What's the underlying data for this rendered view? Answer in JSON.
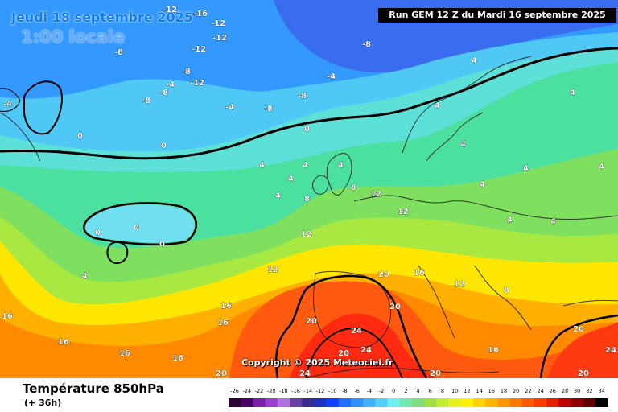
{
  "header": {
    "date": "Jeudi 18 septembre 2025",
    "time": "1:00 locale",
    "run": "Run GEM 12 Z du Mardi 16 septembre 2025"
  },
  "copyright": "Copyright © 2025 Meteociel.fr",
  "footer": {
    "variable": "Température 850hPa",
    "lead": "(+ 36h)"
  },
  "legend": {
    "ticks": [
      "-26",
      "-24",
      "-22",
      "-20",
      "-18",
      "-16",
      "-14",
      "-12",
      "-10",
      "-8",
      "-6",
      "-4",
      "-2",
      "0",
      "2",
      "4",
      "6",
      "8",
      "10",
      "12",
      "14",
      "16",
      "18",
      "20",
      "22",
      "24",
      "26",
      "28",
      "30",
      "32",
      "34"
    ],
    "colors": [
      "#2a0030",
      "#4d0066",
      "#7a1fa8",
      "#9a3fd0",
      "#b070e0",
      "#6a3fa0",
      "#3a2a90",
      "#2030c0",
      "#1040ff",
      "#2070ff",
      "#3090ff",
      "#40b0ff",
      "#50d0ff",
      "#70f0f0",
      "#70e8b0",
      "#80e080",
      "#a0e040",
      "#c0ee30",
      "#e8f020",
      "#ffef00",
      "#ffd200",
      "#ffb400",
      "#ff9600",
      "#ff7800",
      "#ff5a00",
      "#ff3c00",
      "#e82000",
      "#c00000",
      "#900000",
      "#600000",
      "#000000"
    ]
  },
  "map_labels": {
    "l01": "-12",
    "l02": "-16",
    "l03": "-12",
    "l04": "-12",
    "l05": "-12",
    "l06": "-8",
    "l07": "-8",
    "l08": "-8",
    "l09": "-4",
    "l10": "-12",
    "l11": "-8",
    "l12": "-8",
    "l13": "-4",
    "l14": "-8",
    "l15": "-8",
    "l16": "-4",
    "l17": "-4",
    "l18": "0",
    "l19": "0",
    "l20": "0",
    "l21": "4",
    "l22": "4",
    "l23": "4",
    "l24": "4",
    "l25": "4",
    "l26": "4",
    "l27": "4",
    "l28": "4",
    "l29": "4",
    "l30": "4",
    "l31": "4",
    "l32": "8",
    "l33": "8",
    "l34": "12",
    "l35": "12",
    "l36": "12",
    "l37": "12",
    "l38": "16",
    "l39": "20",
    "l40": "20",
    "l41": "20",
    "l42": "24",
    "l43": "24",
    "l44": "20",
    "l45": "16",
    "l46": "16",
    "l47": "16",
    "l48": "16",
    "l49": "16",
    "l50": "20",
    "l51": "24",
    "l52": "20",
    "l53": "16",
    "l54": "12",
    "l55": "8",
    "l56": "4",
    "l57": "0",
    "l58": "0",
    "l59": "0",
    "l60": "4",
    "l61": "16",
    "l62": "20",
    "l63": "24",
    "l64": "20",
    "l65": "4",
    "l66": "4"
  }
}
